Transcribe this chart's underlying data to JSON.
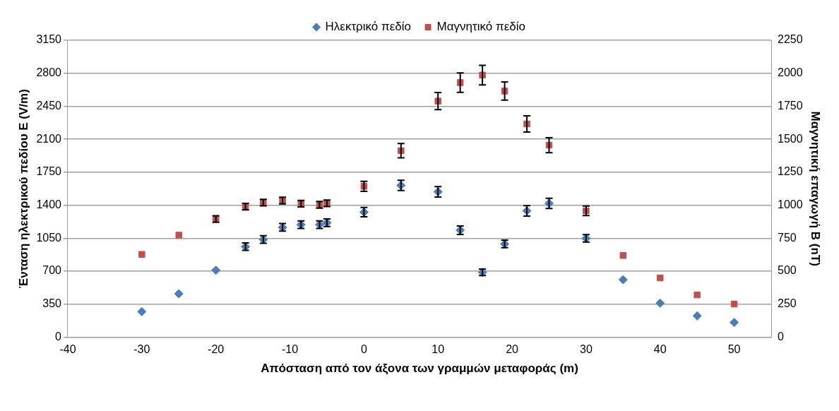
{
  "chart_data": {
    "type": "scatter",
    "xlabel": "Απόσταση από τον άξονα των γραμμών μεταφοράς (m)",
    "ylabel": "Ένταση ηλεκτρικού πεδίου E (V/m)",
    "y2label": "Μαγνητική επαγωγή B (nT)",
    "x": [
      -30,
      -25,
      -20,
      -16,
      -13.6,
      -11,
      -8.5,
      -6,
      -5,
      0,
      5,
      10,
      13,
      16,
      19,
      22,
      25,
      30,
      35,
      40,
      45,
      50
    ],
    "series": [
      {
        "name": "Ηλεκτρικό πεδίο",
        "color": "#4a7ebb",
        "marker": "diamond",
        "values": [
          270,
          460,
          710,
          960,
          1036,
          1165,
          1194,
          1194,
          1214,
          1326,
          1610,
          1542,
          1135,
          688,
          989,
          1340,
          1419,
          1048,
          609,
          360,
          225,
          155
        ],
        "errors": [
          null,
          null,
          null,
          40,
          40,
          40,
          40,
          40,
          40,
          50,
          55,
          55,
          45,
          35,
          40,
          55,
          55,
          40,
          null,
          null,
          null,
          null
        ]
      },
      {
        "name": "Μαγνητικό πεδίο",
        "color": "#c0504d",
        "marker": "square",
        "axis": "y2",
        "values": [
          627,
          773,
          895,
          989,
          1020,
          1035,
          1012,
          1003,
          1014,
          1143,
          1413,
          1789,
          1929,
          1986,
          1865,
          1616,
          1455,
          957,
          619,
          449,
          320,
          251
        ],
        "errors": [
          null,
          null,
          25,
          25,
          25,
          25,
          25,
          25,
          25,
          38,
          54,
          65,
          74,
          74,
          69,
          62,
          57,
          36,
          null,
          null,
          null,
          null
        ]
      }
    ],
    "xlim": [
      -40,
      55
    ],
    "xticks": [
      -40,
      -30,
      -20,
      -10,
      0,
      10,
      20,
      30,
      40,
      50
    ],
    "ylim": [
      0,
      3150
    ],
    "yticks": [
      0,
      350,
      700,
      1050,
      1400,
      1750,
      2100,
      2450,
      2800,
      3150
    ],
    "y2lim": [
      0,
      2250
    ],
    "y2ticks": [
      0,
      250,
      500,
      750,
      1000,
      1250,
      1500,
      1750,
      2000,
      2250
    ],
    "grid": "y",
    "legend": "top"
  }
}
